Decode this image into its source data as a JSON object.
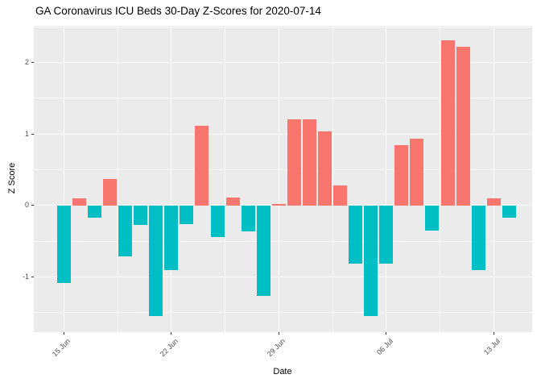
{
  "chart_data": {
    "type": "bar",
    "title": "GA Coronavirus ICU Beds 30-Day Z-Scores for 2020-07-14",
    "xlabel": "Date",
    "ylabel": "Z Score",
    "categories": [
      "15 Jun",
      "16 Jun",
      "17 Jun",
      "18 Jun",
      "19 Jun",
      "20 Jun",
      "21 Jun",
      "22 Jun",
      "23 Jun",
      "24 Jun",
      "25 Jun",
      "26 Jun",
      "27 Jun",
      "28 Jun",
      "29 Jun",
      "30 Jun",
      "01 Jul",
      "02 Jul",
      "03 Jul",
      "04 Jul",
      "05 Jul",
      "06 Jul",
      "07 Jul",
      "08 Jul",
      "09 Jul",
      "10 Jul",
      "11 Jul",
      "12 Jul",
      "13 Jul",
      "14 Jul"
    ],
    "values": [
      -1.09,
      0.1,
      -0.17,
      0.37,
      -0.72,
      -0.27,
      -1.55,
      -0.91,
      -0.26,
      1.12,
      -0.44,
      0.11,
      -0.36,
      -1.27,
      0.02,
      1.21,
      1.2,
      1.03,
      0.28,
      -0.82,
      -1.55,
      -0.82,
      0.84,
      0.93,
      -0.35,
      2.31,
      2.22,
      -0.91,
      0.1,
      -0.17
    ],
    "ylim": [
      -1.77,
      2.52
    ],
    "y_tick_values": [
      2,
      1,
      0,
      -1
    ],
    "y_tick_labels": [
      "2",
      "1",
      "0",
      "-1"
    ],
    "y_minor_values": [
      2.5,
      1.5,
      0.5,
      -0.5,
      -1.5
    ],
    "x_tick_labels": [
      "15 Jun",
      "22 Jun",
      "29 Jun",
      "06 Jul",
      "13 Jul"
    ],
    "x_tick_day_indices": [
      0,
      7,
      14,
      21,
      28
    ],
    "x_minor_day_indices": [
      3.5,
      10.5,
      17.5,
      24.5
    ],
    "grid": "white major + minor gridlines on gray panel",
    "legend_position": "none",
    "colors": {
      "positive_bar": "#F8766D",
      "negative_bar": "#00BFC4",
      "panel_background": "#EBEBEB",
      "gridline": "#FFFFFF",
      "axis_text": "#4D4D4D",
      "axis_title": "#000000",
      "title_text": "#000000",
      "tick_mark": "#333333",
      "page_background": "#FFFFFF"
    }
  }
}
